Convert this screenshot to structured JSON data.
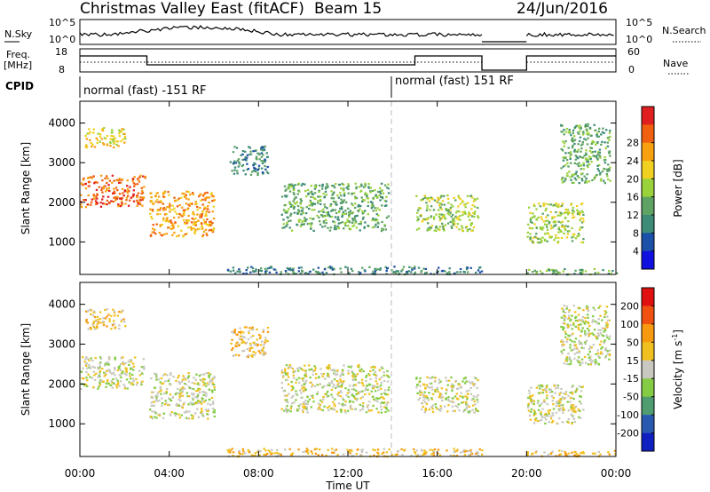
{
  "header": {
    "title": "Christmas Valley East (fitACF)",
    "beam": "Beam 15",
    "date": "24/Jun/2016"
  },
  "panels": {
    "nsky_label": "N.Sky",
    "nsky_ticks": [
      "10^5",
      "10^0"
    ],
    "nsearch_label": "N.Search",
    "nsearch_ticks": [
      "10^5",
      "10^0"
    ],
    "freq_label": "Freq.",
    "freq_unit": "[MHz]",
    "freq_ticks": [
      "18",
      "8"
    ],
    "nave_label": "Nave",
    "nave_ticks": [
      "60",
      "0"
    ],
    "cpid_label": "CPID",
    "cpid_segments": [
      "normal (fast) -151 RF",
      "normal (fast) 151 RF"
    ]
  },
  "chart_data": [
    {
      "type": "heatmap",
      "title": "",
      "ylabel": "Slant Range [km]",
      "xlabel": "Time UT",
      "x_ticks": [
        "00:00",
        "04:00",
        "08:00",
        "12:00",
        "16:00",
        "20:00",
        "00:00"
      ],
      "y_ticks": [
        "1000",
        "2000",
        "3000",
        "4000"
      ],
      "xlim_hours": [
        0,
        24
      ],
      "ylim_km": [
        180,
        4550
      ],
      "colorbar": {
        "label": "Power [dB]",
        "ticks": [
          "4",
          "8",
          "12",
          "16",
          "20",
          "24",
          "28"
        ],
        "colors": [
          "#1010e0",
          "#1d50a8",
          "#3e8c78",
          "#5ea264",
          "#9ad23c",
          "#f0d020",
          "#f8a010",
          "#f06010",
          "#e02020"
        ]
      },
      "regions": [
        {
          "t0": 0.0,
          "t1": 2.9,
          "r0": 1900,
          "r1": 2700,
          "level": 7
        },
        {
          "t0": 0.2,
          "t1": 2.0,
          "r0": 3400,
          "r1": 3900,
          "level": 5
        },
        {
          "t0": 3.1,
          "t1": 6.0,
          "r0": 1150,
          "r1": 2300,
          "level": 6
        },
        {
          "t0": 6.7,
          "t1": 8.4,
          "r0": 2700,
          "r1": 3450,
          "level": 2
        },
        {
          "t0": 9.0,
          "t1": 13.8,
          "r0": 1300,
          "r1": 2500,
          "level": 3
        },
        {
          "t0": 15.0,
          "t1": 17.8,
          "r0": 1300,
          "r1": 2200,
          "level": 4
        },
        {
          "t0": 20.0,
          "t1": 22.5,
          "r0": 1000,
          "r1": 2000,
          "level": 4
        },
        {
          "t0": 21.5,
          "t1": 23.7,
          "r0": 2500,
          "r1": 4000,
          "level": 3
        },
        {
          "t0": 6.5,
          "t1": 18.0,
          "r0": 200,
          "r1": 400,
          "level": 2
        },
        {
          "t0": 20.0,
          "t1": 24.0,
          "r0": 200,
          "r1": 350,
          "level": 3
        }
      ]
    },
    {
      "type": "heatmap",
      "title": "",
      "ylabel": "Slant Range [km]",
      "xlabel": "Time UT",
      "x_ticks": [
        "00:00",
        "04:00",
        "08:00",
        "12:00",
        "16:00",
        "20:00",
        "00:00"
      ],
      "y_ticks": [
        "1000",
        "2000",
        "3000",
        "4000"
      ],
      "xlim_hours": [
        0,
        24
      ],
      "ylim_km": [
        180,
        4550
      ],
      "colorbar": {
        "label": "Velocity [m s^-1]",
        "ticks": [
          "200",
          "100",
          "50",
          "15",
          "-15",
          "-50",
          "-100",
          "-200"
        ],
        "colors": [
          "#1020c0",
          "#2a5ab0",
          "#4e9c70",
          "#84cc44",
          "#c8c8c0",
          "#f0c020",
          "#f89a10",
          "#f05010",
          "#e01010"
        ]
      },
      "regions": [
        {
          "t0": 0.0,
          "t1": 2.9,
          "r0": 1900,
          "r1": 2700,
          "level": 4
        },
        {
          "t0": 0.2,
          "t1": 2.0,
          "r0": 3400,
          "r1": 3900,
          "level": 5
        },
        {
          "t0": 3.1,
          "t1": 6.0,
          "r0": 1150,
          "r1": 2300,
          "level": 4
        },
        {
          "t0": 6.7,
          "t1": 8.4,
          "r0": 2700,
          "r1": 3450,
          "level": 5
        },
        {
          "t0": 9.0,
          "t1": 13.8,
          "r0": 1300,
          "r1": 2500,
          "level": 4
        },
        {
          "t0": 15.0,
          "t1": 17.8,
          "r0": 1300,
          "r1": 2200,
          "level": 4
        },
        {
          "t0": 20.0,
          "t1": 22.5,
          "r0": 1000,
          "r1": 2000,
          "level": 4
        },
        {
          "t0": 21.5,
          "t1": 23.7,
          "r0": 2500,
          "r1": 4000,
          "level": 4
        },
        {
          "t0": 6.5,
          "t1": 18.0,
          "r0": 200,
          "r1": 400,
          "level": 5
        },
        {
          "t0": 20.0,
          "t1": 24.0,
          "r0": 200,
          "r1": 350,
          "level": 5
        }
      ]
    }
  ]
}
